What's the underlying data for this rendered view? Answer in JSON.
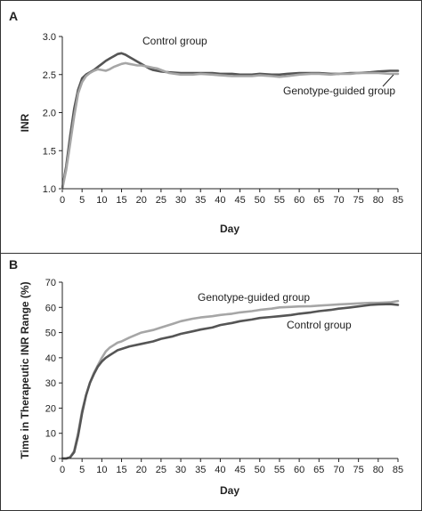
{
  "chart_data": [
    {
      "panel": "A",
      "type": "line",
      "title": "",
      "xlabel": "Day",
      "ylabel": "INR",
      "xlim": [
        0,
        85
      ],
      "ylim": [
        1.0,
        3.0
      ],
      "xticks": [
        "0",
        "5",
        "10",
        "15",
        "20",
        "25",
        "30",
        "35",
        "40",
        "45",
        "50",
        "55",
        "60",
        "65",
        "70",
        "75",
        "80",
        "85"
      ],
      "yticks": [
        "1.0",
        "1.5",
        "2.0",
        "2.5",
        "3.0"
      ],
      "grid": false,
      "series": [
        {
          "name": "Control group",
          "color": "#555555",
          "x": [
            0,
            1,
            2,
            3,
            4,
            5,
            6,
            7,
            8,
            9,
            10,
            11,
            12,
            13,
            14,
            15,
            16,
            17,
            18,
            19,
            20,
            21,
            22,
            23,
            24,
            25,
            27,
            30,
            33,
            35,
            38,
            40,
            43,
            45,
            48,
            50,
            53,
            55,
            57,
            60,
            63,
            65,
            68,
            70,
            73,
            75,
            78,
            80,
            83,
            85
          ],
          "y": [
            1.0,
            1.3,
            1.7,
            2.05,
            2.3,
            2.45,
            2.5,
            2.53,
            2.56,
            2.6,
            2.64,
            2.68,
            2.71,
            2.74,
            2.77,
            2.78,
            2.76,
            2.73,
            2.7,
            2.67,
            2.64,
            2.61,
            2.58,
            2.56,
            2.55,
            2.54,
            2.53,
            2.52,
            2.52,
            2.52,
            2.52,
            2.51,
            2.51,
            2.5,
            2.5,
            2.51,
            2.5,
            2.5,
            2.51,
            2.52,
            2.52,
            2.52,
            2.51,
            2.51,
            2.52,
            2.52,
            2.53,
            2.54,
            2.55,
            2.55
          ]
        },
        {
          "name": "Genotype-guided group",
          "color": "#a6a6a6",
          "x": [
            0,
            1,
            2,
            3,
            4,
            5,
            6,
            7,
            8,
            9,
            10,
            11,
            12,
            13,
            14,
            15,
            16,
            17,
            18,
            19,
            20,
            21,
            22,
            23,
            24,
            25,
            27,
            30,
            33,
            35,
            38,
            40,
            43,
            45,
            48,
            50,
            53,
            55,
            57,
            60,
            63,
            65,
            68,
            70,
            73,
            75,
            78,
            80,
            83,
            85
          ],
          "y": [
            1.0,
            1.25,
            1.6,
            1.95,
            2.25,
            2.4,
            2.48,
            2.52,
            2.55,
            2.57,
            2.56,
            2.55,
            2.57,
            2.6,
            2.62,
            2.64,
            2.65,
            2.64,
            2.63,
            2.62,
            2.62,
            2.61,
            2.6,
            2.59,
            2.58,
            2.56,
            2.52,
            2.5,
            2.5,
            2.51,
            2.5,
            2.49,
            2.48,
            2.48,
            2.48,
            2.49,
            2.48,
            2.47,
            2.48,
            2.5,
            2.51,
            2.51,
            2.5,
            2.51,
            2.51,
            2.52,
            2.52,
            2.52,
            2.51,
            2.51
          ]
        }
      ],
      "annotations": [
        "Control group",
        "Genotype-guided group"
      ]
    },
    {
      "panel": "B",
      "type": "line",
      "title": "",
      "xlabel": "Day",
      "ylabel": "Time in Therapeutic INR Range (%)",
      "xlim": [
        0,
        85
      ],
      "ylim": [
        0,
        70
      ],
      "xticks": [
        "0",
        "5",
        "10",
        "15",
        "20",
        "25",
        "30",
        "35",
        "40",
        "45",
        "50",
        "55",
        "60",
        "65",
        "70",
        "75",
        "80",
        "85"
      ],
      "yticks": [
        "0",
        "10",
        "20",
        "30",
        "40",
        "50",
        "60",
        "70"
      ],
      "grid": false,
      "series": [
        {
          "name": "Genotype-guided group",
          "color": "#a6a6a6",
          "x": [
            0,
            1,
            2,
            3,
            4,
            5,
            6,
            7,
            8,
            9,
            10,
            11,
            12,
            13,
            14,
            15,
            17,
            20,
            23,
            25,
            28,
            30,
            33,
            35,
            38,
            40,
            43,
            45,
            48,
            50,
            53,
            55,
            58,
            60,
            63,
            65,
            68,
            70,
            73,
            75,
            78,
            80,
            83,
            85
          ],
          "y": [
            0,
            0,
            0.5,
            3,
            10,
            19,
            25,
            30,
            34,
            37,
            40,
            42.5,
            44,
            45,
            46,
            46.5,
            48,
            50,
            51,
            52,
            53.5,
            54.5,
            55.5,
            56,
            56.5,
            57,
            57.5,
            58,
            58.5,
            59,
            59.5,
            60,
            60.2,
            60.4,
            60.5,
            60.7,
            61,
            61.2,
            61.4,
            61.6,
            61.8,
            61.8,
            62,
            62.5
          ]
        },
        {
          "name": "Control group",
          "color": "#555555",
          "x": [
            0,
            1,
            2,
            3,
            4,
            5,
            6,
            7,
            8,
            9,
            10,
            11,
            12,
            13,
            14,
            15,
            17,
            20,
            23,
            25,
            28,
            30,
            33,
            35,
            38,
            40,
            43,
            45,
            48,
            50,
            53,
            55,
            58,
            60,
            63,
            65,
            68,
            70,
            73,
            75,
            78,
            80,
            83,
            85
          ],
          "y": [
            0,
            0,
            0.5,
            2.5,
            9,
            18,
            25,
            30,
            33.5,
            36.5,
            38.5,
            40,
            41,
            42,
            43,
            43.5,
            44.5,
            45.5,
            46.5,
            47.5,
            48.5,
            49.5,
            50.5,
            51.2,
            52,
            53,
            53.8,
            54.5,
            55.2,
            55.8,
            56.2,
            56.5,
            57,
            57.5,
            58,
            58.5,
            59,
            59.5,
            60,
            60.4,
            61,
            61.2,
            61.3,
            61
          ]
        }
      ],
      "annotations": [
        "Genotype-guided group",
        "Control group"
      ]
    }
  ]
}
